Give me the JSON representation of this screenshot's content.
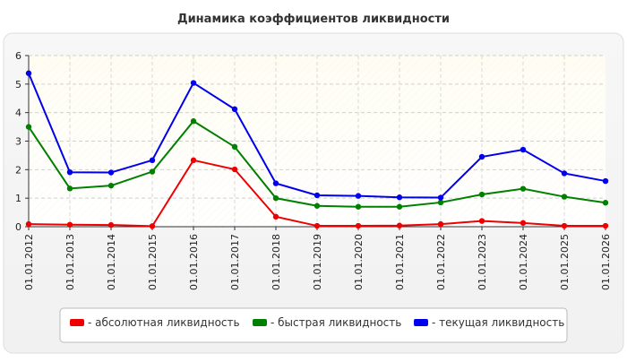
{
  "chart_data": {
    "type": "line",
    "title": "Динамика коэффициентов ликвидности",
    "categories": [
      "01.01.2012",
      "01.01.2013",
      "01.01.2014",
      "01.01.2015",
      "01.01.2016",
      "01.01.2017",
      "01.01.2018",
      "01.01.2019",
      "01.01.2020",
      "01.01.2021",
      "01.01.2022",
      "01.01.2023",
      "01.01.2024",
      "01.01.2025",
      "01.01.2026"
    ],
    "ylim": [
      0,
      6
    ],
    "yticks": [
      "0",
      "1",
      "2",
      "3",
      "4",
      "5",
      "6"
    ],
    "grid": true,
    "legend_position": "bottom",
    "series": [
      {
        "name": "- абсолютная ликвидность",
        "color": "#ee0000",
        "values": [
          0.09,
          0.07,
          0.06,
          0.02,
          2.33,
          2.01,
          0.35,
          0.03,
          0.03,
          0.04,
          0.09,
          0.2,
          0.13,
          0.03,
          0.03
        ]
      },
      {
        "name": "- быстрая ликвидность",
        "color": "#008000",
        "values": [
          3.5,
          1.34,
          1.44,
          1.93,
          3.7,
          2.8,
          1.0,
          0.73,
          0.7,
          0.7,
          0.85,
          1.13,
          1.33,
          1.05,
          0.84
        ]
      },
      {
        "name": "- текущая ликвидность",
        "color": "#0000ee",
        "values": [
          5.38,
          1.91,
          1.9,
          2.33,
          5.04,
          4.12,
          1.52,
          1.1,
          1.08,
          1.03,
          1.02,
          2.45,
          2.7,
          1.87,
          1.6
        ]
      }
    ]
  }
}
